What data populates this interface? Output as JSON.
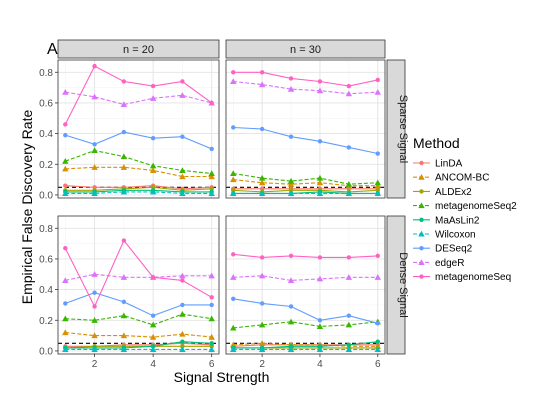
{
  "chart_data": {
    "type": "line",
    "tag": "A",
    "xlabel": "Signal Strength",
    "ylabel": "Empirical False Discovery Rate",
    "x": [
      1,
      2,
      3,
      4,
      5,
      6
    ],
    "xlim": [
      0.75,
      6.25
    ],
    "ylim": [
      -0.02,
      0.88
    ],
    "x_ticks": [
      2,
      4,
      6
    ],
    "y_ticks": [
      0.0,
      0.2,
      0.4,
      0.6,
      0.8
    ],
    "y_tick_labels": [
      "0.0",
      "0.2",
      "0.4",
      "0.6",
      "0.8"
    ],
    "reference_line": 0.05,
    "grid": true,
    "col_labels": [
      "n = 20",
      "n = 30"
    ],
    "row_labels": [
      "Sparse Signal",
      "Dense Signal"
    ],
    "legend": {
      "title": "Method",
      "placement": "right"
    },
    "methods": [
      {
        "name": "LinDA",
        "color": "#F8766D",
        "marker": "circle",
        "dash": "solid"
      },
      {
        "name": "ANCOM-BC",
        "color": "#D89000",
        "marker": "triangle",
        "dash": "dashed"
      },
      {
        "name": "ALDEx2",
        "color": "#A3A500",
        "marker": "circle",
        "dash": "solid"
      },
      {
        "name": "metagenomeSeq2",
        "color": "#39B600",
        "marker": "triangle",
        "dash": "dashed"
      },
      {
        "name": "MaAsLin2",
        "color": "#00BF7D",
        "marker": "circle",
        "dash": "solid"
      },
      {
        "name": "Wilcoxon",
        "color": "#00BFC4",
        "marker": "triangle",
        "dash": "dashed"
      },
      {
        "name": "DESeq2",
        "color": "#619CFF",
        "marker": "circle",
        "dash": "solid"
      },
      {
        "name": "edgeR",
        "color": "#DB72FB",
        "marker": "triangle",
        "dash": "dashed"
      },
      {
        "name": "metagenomeSeq",
        "color": "#FF61C3",
        "marker": "circle",
        "dash": "solid"
      }
    ],
    "panels": [
      {
        "row": 0,
        "col": 0,
        "series": {
          "LinDA": [
            0.06,
            0.05,
            0.05,
            0.06,
            0.04,
            0.05
          ],
          "ANCOM-BC": [
            0.17,
            0.18,
            0.18,
            0.16,
            0.12,
            0.12
          ],
          "ALDEx2": [
            0.03,
            0.03,
            0.04,
            0.05,
            0.03,
            0.04
          ],
          "metagenomeSeq2": [
            0.22,
            0.29,
            0.25,
            0.19,
            0.16,
            0.14
          ],
          "MaAsLin2": [
            0.02,
            0.02,
            0.03,
            0.03,
            0.02,
            0.02
          ],
          "Wilcoxon": [
            0.01,
            0.01,
            0.02,
            0.02,
            0.01,
            0.01
          ],
          "DESeq2": [
            0.39,
            0.33,
            0.41,
            0.37,
            0.38,
            0.3
          ],
          "edgeR": [
            0.67,
            0.64,
            0.59,
            0.63,
            0.65,
            0.6
          ],
          "metagenomeSeq": [
            0.46,
            0.84,
            0.74,
            0.71,
            0.74,
            0.6
          ]
        }
      },
      {
        "row": 0,
        "col": 1,
        "series": {
          "LinDA": [
            0.04,
            0.04,
            0.04,
            0.04,
            0.04,
            0.04
          ],
          "ANCOM-BC": [
            0.1,
            0.08,
            0.07,
            0.08,
            0.06,
            0.06
          ],
          "ALDEx2": [
            0.03,
            0.02,
            0.03,
            0.03,
            0.02,
            0.03
          ],
          "metagenomeSeq2": [
            0.14,
            0.11,
            0.09,
            0.11,
            0.07,
            0.08
          ],
          "MaAsLin2": [
            0.01,
            0.01,
            0.01,
            0.02,
            0.01,
            0.01
          ],
          "Wilcoxon": [
            0.01,
            0.01,
            0.01,
            0.01,
            0.01,
            0.01
          ],
          "DESeq2": [
            0.44,
            0.43,
            0.38,
            0.35,
            0.31,
            0.27
          ],
          "edgeR": [
            0.74,
            0.72,
            0.69,
            0.68,
            0.66,
            0.67
          ],
          "metagenomeSeq": [
            0.8,
            0.8,
            0.76,
            0.74,
            0.71,
            0.75
          ]
        }
      },
      {
        "row": 1,
        "col": 0,
        "series": {
          "LinDA": [
            0.03,
            0.03,
            0.04,
            0.04,
            0.05,
            0.04
          ],
          "ANCOM-BC": [
            0.12,
            0.1,
            0.1,
            0.09,
            0.11,
            0.09
          ],
          "ALDEx2": [
            0.02,
            0.03,
            0.03,
            0.03,
            0.03,
            0.03
          ],
          "metagenomeSeq2": [
            0.21,
            0.2,
            0.23,
            0.17,
            0.24,
            0.21
          ],
          "MaAsLin2": [
            0.02,
            0.02,
            0.02,
            0.03,
            0.06,
            0.05
          ],
          "Wilcoxon": [
            0.01,
            0.01,
            0.01,
            0.01,
            0.01,
            0.01
          ],
          "DESeq2": [
            0.31,
            0.38,
            0.32,
            0.23,
            0.3,
            0.3
          ],
          "edgeR": [
            0.46,
            0.5,
            0.48,
            0.48,
            0.49,
            0.49
          ],
          "metagenomeSeq": [
            0.67,
            0.29,
            0.72,
            0.48,
            0.46,
            0.35
          ]
        }
      },
      {
        "row": 1,
        "col": 1,
        "series": {
          "LinDA": [
            0.03,
            0.04,
            0.04,
            0.04,
            0.04,
            0.04
          ],
          "ANCOM-BC": [
            0.04,
            0.05,
            0.04,
            0.04,
            0.03,
            0.03
          ],
          "ALDEx2": [
            0.02,
            0.02,
            0.02,
            0.02,
            0.02,
            0.02
          ],
          "metagenomeSeq2": [
            0.15,
            0.17,
            0.19,
            0.16,
            0.17,
            0.19
          ],
          "MaAsLin2": [
            0.02,
            0.02,
            0.03,
            0.03,
            0.04,
            0.06
          ],
          "Wilcoxon": [
            0.01,
            0.01,
            0.01,
            0.01,
            0.01,
            0.01
          ],
          "DESeq2": [
            0.34,
            0.31,
            0.29,
            0.2,
            0.23,
            0.18
          ],
          "edgeR": [
            0.48,
            0.49,
            0.46,
            0.47,
            0.48,
            0.48
          ],
          "metagenomeSeq": [
            0.63,
            0.61,
            0.62,
            0.61,
            0.61,
            0.62
          ]
        }
      }
    ]
  }
}
